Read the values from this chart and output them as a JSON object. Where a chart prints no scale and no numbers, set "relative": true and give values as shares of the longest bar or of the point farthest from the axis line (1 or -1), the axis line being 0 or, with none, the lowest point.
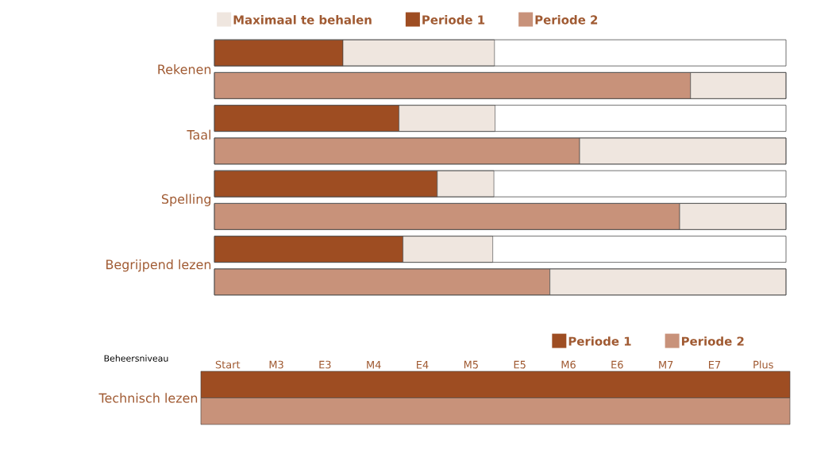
{
  "chart_data": [
    {
      "type": "bar",
      "orientation": "horizontal",
      "stacked": true,
      "relative": true,
      "legend": "top",
      "categories": [
        "Rekenen",
        null,
        "Taal",
        null,
        "Spelling",
        null,
        "Begrijpend lezen",
        null
      ],
      "series": [
        {
          "name": "Periode 1",
          "color": "#9e4d22",
          "values": [
            0.225,
            null,
            0.323,
            null,
            0.39,
            null,
            0.33,
            null
          ]
        },
        {
          "name": "Periode 2",
          "color": "#c8927a",
          "values": [
            null,
            0.833,
            null,
            0.639,
            null,
            0.814,
            null,
            0.587
          ]
        },
        {
          "name": "Maximaal te behalen",
          "color": "#efe6df",
          "values": [
            0.265,
            0.167,
            0.168,
            0.361,
            0.099,
            0.186,
            0.157,
            0.413
          ]
        }
      ]
    },
    {
      "type": "bar",
      "orientation": "horizontal",
      "relative": true,
      "legend": "top right",
      "xlabel": "Beheersniveau",
      "categories": [
        "Technisch lezen"
      ],
      "annotations": [
        "Start",
        "M3",
        "E3",
        "M4",
        "E4",
        "M5",
        "E5",
        "M6",
        "E6",
        "M7",
        "E7",
        "Plus"
      ],
      "series": [
        {
          "name": "Periode 1",
          "color": "#9e4d22",
          "values": [
            1
          ]
        },
        {
          "name": "Periode 2",
          "color": "#c8927a",
          "values": [
            1
          ]
        }
      ]
    }
  ]
}
